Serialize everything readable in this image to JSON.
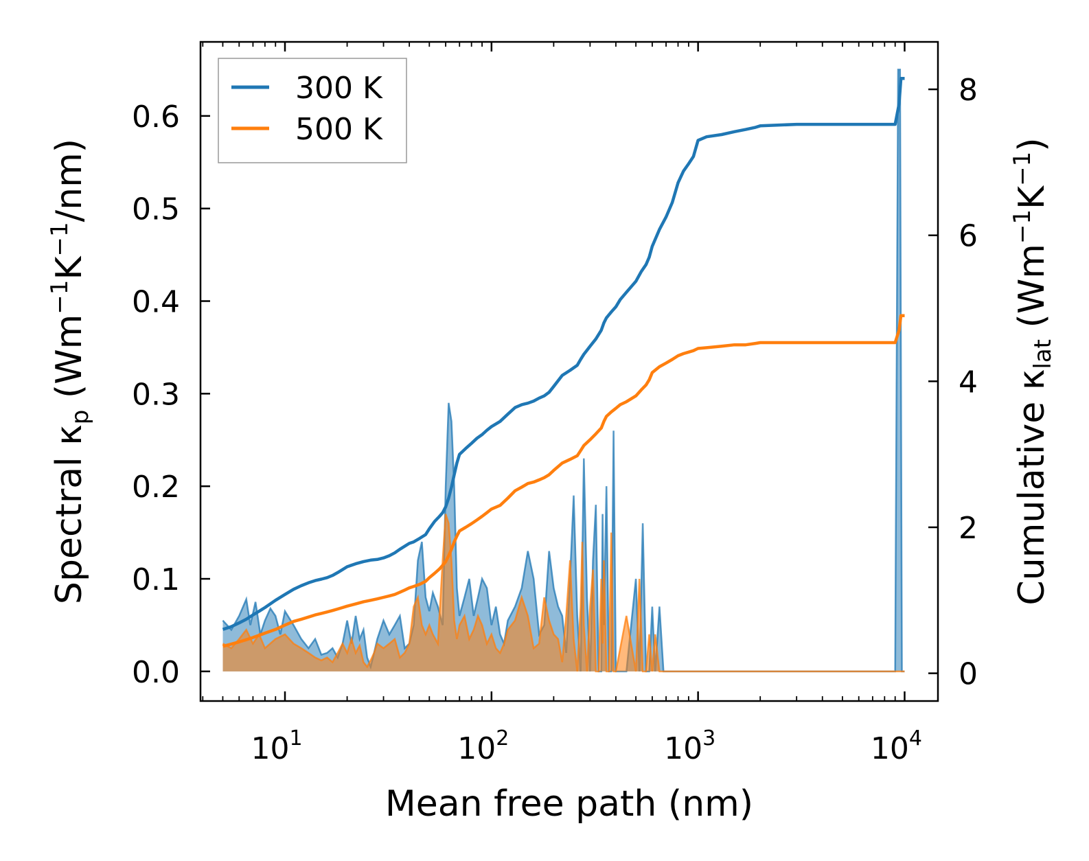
{
  "chart_data": {
    "type": "line",
    "xlabel": "Mean free path (nm)",
    "xscale": "log",
    "xlim": [
      3.9,
      14500
    ],
    "x_tick_base": "10",
    "x_ticks": [
      {
        "value": 10,
        "exp": "1"
      },
      {
        "value": 100,
        "exp": "2"
      },
      {
        "value": 1000,
        "exp": "3"
      },
      {
        "value": 10000,
        "exp": "4"
      }
    ],
    "ylabel_left": {
      "prefix": "Spectral κ",
      "sub": "p",
      "mid": " (Wm",
      "sup1": "−1",
      "k": "K",
      "sup2": "−1",
      "suffix": "/nm)"
    },
    "ylim_left": [
      -0.032,
      0.68
    ],
    "y_ticks_left": [
      "0.0",
      "0.1",
      "0.2",
      "0.3",
      "0.4",
      "0.5",
      "0.6"
    ],
    "ylabel_right": {
      "prefix": "Cumulative κ",
      "sub": "lat",
      "mid": " (Wm",
      "sup1": "−1",
      "k": "K",
      "sup2": "−1",
      "suffix": ")"
    },
    "ylim_right": [
      -0.38,
      8.65
    ],
    "y_ticks_right": [
      "0",
      "2",
      "4",
      "6",
      "8"
    ],
    "legend": {
      "position": "top-left"
    },
    "series": [
      {
        "name": "300 K",
        "color": "#1f77b4",
        "axis": "right",
        "kind": "cumulative",
        "x": [
          5,
          5.5,
          6,
          6.5,
          7,
          7.5,
          8,
          9,
          10,
          11,
          12,
          13,
          14,
          15,
          16,
          17,
          18,
          19,
          20,
          22,
          24,
          26,
          28,
          30,
          32,
          34,
          36,
          38,
          40,
          42,
          45,
          48,
          50,
          53,
          56,
          58,
          60,
          62,
          64,
          66,
          68,
          70,
          75,
          80,
          85,
          90,
          95,
          100,
          110,
          120,
          130,
          140,
          150,
          160,
          170,
          180,
          190,
          200,
          220,
          240,
          260,
          270,
          280,
          300,
          320,
          340,
          350,
          360,
          380,
          400,
          420,
          450,
          500,
          530,
          560,
          580,
          600,
          650,
          700,
          750,
          800,
          850,
          900,
          950,
          1000,
          1100,
          1300,
          1500,
          1700,
          1900,
          2000,
          3000,
          5000,
          9000,
          9400,
          9600,
          10000
        ],
        "y": [
          0.6,
          0.64,
          0.69,
          0.74,
          0.8,
          0.85,
          0.9,
          1.0,
          1.08,
          1.15,
          1.2,
          1.24,
          1.27,
          1.29,
          1.31,
          1.34,
          1.38,
          1.42,
          1.46,
          1.5,
          1.53,
          1.55,
          1.56,
          1.58,
          1.61,
          1.65,
          1.7,
          1.74,
          1.78,
          1.8,
          1.85,
          1.9,
          1.98,
          2.08,
          2.15,
          2.2,
          2.28,
          2.4,
          2.55,
          2.72,
          2.88,
          3.0,
          3.08,
          3.15,
          3.22,
          3.27,
          3.33,
          3.38,
          3.45,
          3.55,
          3.64,
          3.68,
          3.7,
          3.73,
          3.77,
          3.8,
          3.85,
          3.93,
          4.08,
          4.15,
          4.22,
          4.3,
          4.37,
          4.48,
          4.58,
          4.7,
          4.8,
          4.87,
          4.95,
          5.02,
          5.12,
          5.22,
          5.37,
          5.5,
          5.6,
          5.7,
          5.85,
          6.08,
          6.25,
          6.45,
          6.72,
          6.88,
          6.98,
          7.08,
          7.3,
          7.35,
          7.38,
          7.42,
          7.45,
          7.48,
          7.5,
          7.52,
          7.52,
          7.52,
          7.8,
          8.15,
          8.15
        ]
      },
      {
        "name": "500 K",
        "color": "#ff7f0e",
        "axis": "right",
        "kind": "cumulative",
        "x": [
          5,
          5.5,
          6,
          6.5,
          7,
          7.5,
          8,
          9,
          10,
          11,
          12,
          13,
          14,
          15,
          16,
          17,
          18,
          19,
          20,
          22,
          24,
          26,
          28,
          30,
          32,
          34,
          36,
          38,
          40,
          42,
          45,
          48,
          50,
          53,
          56,
          58,
          60,
          62,
          64,
          66,
          68,
          70,
          75,
          80,
          85,
          90,
          95,
          100,
          110,
          120,
          130,
          140,
          150,
          160,
          170,
          180,
          190,
          200,
          220,
          240,
          260,
          270,
          280,
          300,
          320,
          340,
          350,
          360,
          380,
          400,
          420,
          450,
          500,
          530,
          560,
          580,
          600,
          650,
          700,
          750,
          800,
          850,
          900,
          950,
          1000,
          1100,
          1300,
          1500,
          1700,
          1900,
          2000,
          3000,
          5000,
          9000,
          9400,
          9600,
          10000
        ],
        "y": [
          0.37,
          0.4,
          0.43,
          0.46,
          0.49,
          0.52,
          0.55,
          0.6,
          0.66,
          0.71,
          0.74,
          0.77,
          0.8,
          0.82,
          0.84,
          0.86,
          0.88,
          0.9,
          0.92,
          0.95,
          0.98,
          1.0,
          1.02,
          1.04,
          1.06,
          1.08,
          1.11,
          1.14,
          1.17,
          1.19,
          1.22,
          1.26,
          1.31,
          1.37,
          1.43,
          1.48,
          1.53,
          1.61,
          1.7,
          1.8,
          1.88,
          1.95,
          2.0,
          2.05,
          2.1,
          2.15,
          2.2,
          2.25,
          2.3,
          2.4,
          2.5,
          2.55,
          2.6,
          2.62,
          2.65,
          2.68,
          2.72,
          2.78,
          2.88,
          2.93,
          2.98,
          3.05,
          3.12,
          3.2,
          3.28,
          3.36,
          3.45,
          3.52,
          3.58,
          3.63,
          3.68,
          3.72,
          3.8,
          3.88,
          3.95,
          4.02,
          4.12,
          4.2,
          4.25,
          4.3,
          4.35,
          4.38,
          4.4,
          4.42,
          4.45,
          4.46,
          4.48,
          4.5,
          4.5,
          4.52,
          4.53,
          4.53,
          4.53,
          4.53,
          4.7,
          4.9,
          4.9
        ]
      }
    ],
    "spectral_series": [
      {
        "name": "300 K",
        "color": "#1f77b4",
        "axis": "left",
        "kind": "spectral",
        "x": [
          5,
          5.5,
          6,
          6.5,
          6.8,
          7.2,
          7.6,
          8,
          8.5,
          9,
          9.5,
          10,
          11,
          12,
          13,
          14,
          15,
          16,
          17,
          18,
          19,
          20,
          21,
          22,
          23,
          24,
          25,
          26,
          27,
          28,
          30,
          32,
          34,
          36,
          38,
          40,
          42,
          44,
          46,
          48,
          50,
          52,
          55,
          58,
          60,
          62,
          64,
          66,
          68,
          70,
          74,
          78,
          82,
          86,
          90,
          95,
          100,
          105,
          110,
          115,
          120,
          130,
          140,
          150,
          160,
          170,
          180,
          190,
          200,
          210,
          220,
          230,
          240,
          250,
          260,
          270,
          275,
          280,
          290,
          300,
          310,
          320,
          330,
          340,
          345,
          350,
          360,
          370,
          380,
          390,
          400,
          450,
          500,
          520,
          540,
          560,
          580,
          600,
          620,
          650,
          680,
          700,
          730,
          750,
          770,
          800,
          850,
          900,
          930,
          960,
          990,
          1010,
          1050,
          1100,
          1200,
          1400,
          1500,
          1550,
          1600,
          1800,
          1900,
          2000,
          2200,
          5000,
          9000,
          9300,
          9500,
          9700,
          9900,
          10000
        ],
        "y": [
          0.055,
          0.045,
          0.06,
          0.078,
          0.05,
          0.075,
          0.04,
          0.055,
          0.068,
          0.06,
          0.04,
          0.065,
          0.05,
          0.035,
          0.025,
          0.035,
          0.018,
          0.02,
          0.025,
          0.015,
          0.03,
          0.055,
          0.03,
          0.06,
          0.035,
          0.045,
          0.015,
          0.005,
          0.02,
          0.035,
          0.055,
          0.04,
          0.05,
          0.06,
          0.025,
          0.03,
          0.05,
          0.12,
          0.14,
          0.08,
          0.065,
          0.085,
          0.07,
          0.05,
          0.2,
          0.29,
          0.27,
          0.2,
          0.09,
          0.06,
          0.08,
          0.1,
          0.06,
          0.08,
          0.1,
          0.09,
          0.05,
          0.07,
          0.04,
          0.03,
          0.055,
          0.07,
          0.09,
          0.13,
          0.1,
          0.04,
          0.05,
          0.13,
          0.09,
          0.07,
          0.06,
          0.02,
          0.1,
          0.19,
          0.06,
          0.0,
          0.12,
          0.23,
          0.08,
          0.0,
          0.12,
          0.18,
          0.0,
          0.0,
          0.17,
          0.05,
          0.2,
          0.0,
          0.0,
          0.26,
          0.0,
          0.0,
          0.1,
          0.0,
          0.16,
          0.0,
          0.0,
          0.07,
          0.0,
          0.07,
          0.0,
          0.0,
          0.0,
          0.0,
          0.0,
          0.0,
          0.0,
          0.0,
          0.0,
          0.0,
          0.0,
          0.0,
          0.0,
          0.0,
          0.0,
          0.0,
          0.0,
          0.0,
          0.0,
          0.0,
          0.0,
          0.0,
          0.0,
          0.0,
          0.0,
          0.65,
          0.65,
          0.0,
          0.0,
          0.0
        ]
      },
      {
        "name": "500 K",
        "color": "#ff7f0e",
        "axis": "left",
        "kind": "spectral",
        "x": [
          5,
          5.5,
          6,
          6.5,
          7,
          7.5,
          8,
          9,
          10,
          11,
          12,
          13,
          14,
          15,
          16,
          17,
          18,
          19,
          20,
          21,
          22,
          23,
          24,
          25,
          26,
          27,
          28,
          30,
          32,
          34,
          36,
          38,
          40,
          42,
          44,
          46,
          48,
          50,
          52,
          55,
          58,
          60,
          62,
          64,
          66,
          68,
          70,
          74,
          78,
          82,
          86,
          90,
          95,
          100,
          105,
          110,
          115,
          120,
          130,
          140,
          150,
          160,
          170,
          180,
          190,
          200,
          210,
          220,
          230,
          240,
          250,
          260,
          270,
          275,
          280,
          290,
          300,
          310,
          320,
          330,
          340,
          345,
          350,
          360,
          370,
          380,
          390,
          400,
          450,
          500,
          520,
          540,
          560,
          580,
          600,
          620,
          650,
          680,
          700,
          730,
          750,
          770,
          800,
          850,
          900,
          930,
          960,
          990,
          1010,
          1050,
          1100,
          1200,
          1400,
          1500,
          1550,
          1600,
          1800,
          1900,
          2000,
          2200,
          5000,
          9000,
          9300,
          9500,
          9700,
          9900,
          10000
        ],
        "y": [
          0.03,
          0.025,
          0.035,
          0.045,
          0.03,
          0.04,
          0.025,
          0.035,
          0.04,
          0.03,
          0.025,
          0.02,
          0.015,
          0.012,
          0.015,
          0.01,
          0.02,
          0.03,
          0.02,
          0.035,
          0.02,
          0.028,
          0.01,
          0.005,
          0.012,
          0.02,
          0.03,
          0.025,
          0.03,
          0.035,
          0.015,
          0.02,
          0.03,
          0.07,
          0.08,
          0.05,
          0.04,
          0.05,
          0.04,
          0.03,
          0.12,
          0.17,
          0.16,
          0.12,
          0.055,
          0.035,
          0.05,
          0.06,
          0.035,
          0.045,
          0.06,
          0.05,
          0.03,
          0.04,
          0.025,
          0.02,
          0.03,
          0.045,
          0.055,
          0.08,
          0.06,
          0.025,
          0.03,
          0.08,
          0.055,
          0.04,
          0.035,
          0.01,
          0.06,
          0.12,
          0.035,
          0.0,
          0.07,
          0.14,
          0.05,
          0.0,
          0.07,
          0.11,
          0.0,
          0.0,
          0.1,
          0.03,
          0.12,
          0.0,
          0.0,
          0.15,
          0.0,
          0.0,
          0.06,
          0.0,
          0.1,
          0.0,
          0.0,
          0.04,
          0.0,
          0.04,
          0.0,
          0.0,
          0.0,
          0.0,
          0.0,
          0.0,
          0.0,
          0.0,
          0.0,
          0.0,
          0.0,
          0.0,
          0.0,
          0.0,
          0.0,
          0.0,
          0.0,
          0.0,
          0.0,
          0.0,
          0.0,
          0.0,
          0.0,
          0.0,
          0.0,
          0.0,
          0.0,
          0.0,
          0.0,
          0.0,
          0.0
        ]
      }
    ]
  }
}
